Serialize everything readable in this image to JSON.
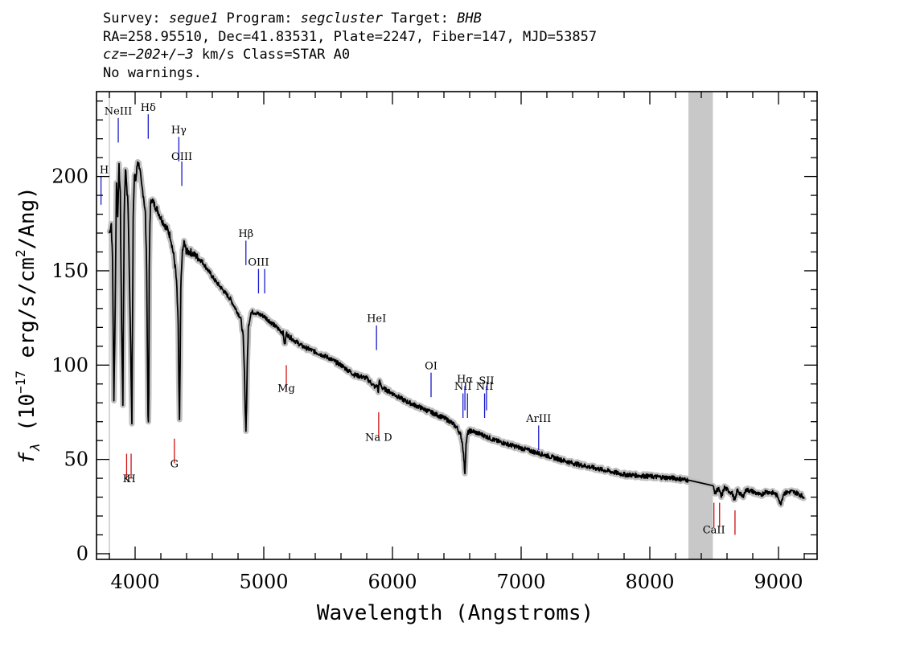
{
  "header": {
    "line1": {
      "survey_label": "Survey: ",
      "survey": "segue1",
      "program_label": " Program: ",
      "program": "segcluster",
      "target_label": " Target: ",
      "target": "BHB"
    },
    "line2": "RA=258.95510, Dec=41.83531, Plate=2247, Fiber=147, MJD=53857",
    "line3": {
      "cz_label": "cz=",
      "cz": "−202+/−3",
      "rest": " km/s Class=STAR A0"
    },
    "line4": "No warnings."
  },
  "chart_data": {
    "type": "line",
    "xlabel": "Wavelength (Angstroms)",
    "ylabel_parts": {
      "f": "f",
      "sub": "λ",
      "pre": " (10",
      "exp": "−17",
      "mid": " erg/s/cm",
      "exp2": "2",
      "post": "/Ang)"
    },
    "xlim": [
      3700,
      9300
    ],
    "ylim": [
      -3,
      245
    ],
    "x_ticks": [
      4000,
      5000,
      6000,
      7000,
      8000,
      9000
    ],
    "y_ticks": [
      0,
      50,
      100,
      150,
      200
    ],
    "masked_region": [
      8300,
      8490
    ],
    "colors": {
      "spectrum": "#000000",
      "error": "#c0c0c0",
      "emission": "#1a1acc",
      "absorption": "#d01010",
      "mask": "#c8c8c8"
    },
    "spectrum": {
      "x": [
        3800,
        3815,
        3825,
        3835,
        3845,
        3855,
        3865,
        3875,
        3885,
        3895,
        3905,
        3915,
        3925,
        3935,
        3945,
        3955,
        3965,
        3975,
        3985,
        3995,
        4005,
        4020,
        4035,
        4050,
        4065,
        4080,
        4090,
        4095,
        4100,
        4103,
        4106,
        4110,
        4115,
        4120,
        4130,
        4150,
        4175,
        4200,
        4225,
        4250,
        4275,
        4300,
        4315,
        4325,
        4335,
        4340,
        4345,
        4350,
        4355,
        4365,
        4380,
        4400,
        4430,
        4470,
        4520,
        4570,
        4620,
        4680,
        4740,
        4780,
        4820,
        4840,
        4850,
        4856,
        4861,
        4866,
        4872,
        4880,
        4900,
        4930,
        4960,
        5000,
        5050,
        5100,
        5150,
        5160,
        5167,
        5175,
        5185,
        5200,
        5300,
        5400,
        5500,
        5600,
        5700,
        5800,
        5870,
        5880,
        5890,
        5896,
        5905,
        5920,
        6000,
        6100,
        6200,
        6300,
        6400,
        6450,
        6500,
        6530,
        6545,
        6555,
        6560,
        6563,
        6566,
        6572,
        6585,
        6600,
        6620,
        6700,
        6800,
        7000,
        7200,
        7400,
        7600,
        7800,
        8000,
        8200,
        8300,
        8490,
        8498,
        8510,
        8530,
        8542,
        8555,
        8580,
        8600,
        8640,
        8662,
        8680,
        8720,
        8750,
        8800,
        8860,
        8900,
        8970,
        9000,
        9015,
        9040,
        9100,
        9150,
        9200
      ],
      "y": [
        170,
        175,
        155,
        80,
        130,
        198,
        180,
        205,
        190,
        120,
        80,
        180,
        205,
        195,
        185,
        150,
        110,
        70,
        180,
        200,
        198,
        208,
        205,
        195,
        190,
        180,
        150,
        110,
        75,
        68,
        85,
        150,
        175,
        185,
        188,
        185,
        182,
        178,
        175,
        172,
        168,
        158,
        150,
        140,
        120,
        90,
        70,
        100,
        140,
        158,
        165,
        160,
        160,
        158,
        155,
        150,
        145,
        140,
        135,
        130,
        125,
        115,
        95,
        75,
        66,
        78,
        100,
        120,
        128,
        128,
        127,
        126,
        123,
        120,
        117,
        112,
        112,
        117,
        116,
        115,
        110,
        107,
        104,
        100,
        95,
        93,
        88,
        90,
        85,
        92,
        90,
        88,
        85,
        81,
        78,
        75,
        72,
        70,
        67,
        63,
        58,
        50,
        45,
        43,
        48,
        58,
        64,
        65,
        65,
        63,
        60,
        56,
        52,
        48,
        45,
        42,
        41,
        40,
        39,
        36,
        34,
        32,
        35,
        33,
        30,
        35,
        34,
        32,
        28,
        34,
        30,
        34,
        33,
        31,
        33,
        32,
        30,
        26,
        32,
        33,
        32,
        30
      ]
    },
    "emission_lines": [
      {
        "label": "H",
        "wave": 3735,
        "y0": 185,
        "y1": 200,
        "label_y": 201
      },
      {
        "label": "NeIII",
        "wave": 3869,
        "y0": 218,
        "y1": 231,
        "label_y": 232
      },
      {
        "label": "Hδ",
        "wave": 4102,
        "y0": 220,
        "y1": 233,
        "label_y": 234
      },
      {
        "label": "Hγ",
        "wave": 4340,
        "y0": 208,
        "y1": 221,
        "label_y": 222
      },
      {
        "label": "OIII",
        "wave": 4363,
        "y0": 195,
        "y1": 208,
        "label_y": 208
      },
      {
        "label": "Hβ",
        "wave": 4861,
        "y0": 153,
        "y1": 166,
        "label_y": 167
      },
      {
        "label": "OIII",
        "wave": 4959,
        "y0": 138,
        "y1": 151,
        "label_y": 152
      },
      {
        "label": "",
        "wave": 5007,
        "y0": 138,
        "y1": 151,
        "label_y": 152
      },
      {
        "label": "HeI",
        "wave": 5876,
        "y0": 108,
        "y1": 121,
        "label_y": 122
      },
      {
        "label": "OI",
        "wave": 6300,
        "y0": 83,
        "y1": 96,
        "label_y": 97
      },
      {
        "label": "NII",
        "wave": 6548,
        "y0": 72,
        "y1": 85,
        "label_y": 86
      },
      {
        "label": "Hα",
        "wave": 6563,
        "y0": 76,
        "y1": 89,
        "label_y": 90
      },
      {
        "label": "",
        "wave": 6583,
        "y0": 72,
        "y1": 85,
        "label_y": 86
      },
      {
        "label": "NII",
        "wave": 6716,
        "y0": 72,
        "y1": 85,
        "label_y": 86
      },
      {
        "label": "SII",
        "wave": 6731,
        "y0": 76,
        "y1": 89,
        "label_y": 89
      },
      {
        "label": "ArIII",
        "wave": 7136,
        "y0": 55,
        "y1": 68,
        "label_y": 69
      }
    ],
    "absorption_lines": [
      {
        "label": "K",
        "wave": 3934,
        "y0": 53,
        "y1": 40,
        "label_y": 37
      },
      {
        "label": "H",
        "wave": 3969,
        "y0": 53,
        "y1": 40,
        "label_y": 37
      },
      {
        "label": "G",
        "wave": 4305,
        "y0": 61,
        "y1": 48,
        "label_y": 45
      },
      {
        "label": "Mg",
        "wave": 5175,
        "y0": 100,
        "y1": 87,
        "label_y": 85
      },
      {
        "label": "Na D",
        "wave": 5893,
        "y0": 75,
        "y1": 62,
        "label_y": 59
      },
      {
        "label": "CaII",
        "wave": 8498,
        "y0": 27,
        "y1": 14,
        "label_y": 10
      },
      {
        "label": "",
        "wave": 8542,
        "y0": 27,
        "y1": 14,
        "label_y": 10
      },
      {
        "label": "",
        "wave": 8662,
        "y0": 23,
        "y1": 10,
        "label_y": 10
      }
    ]
  }
}
